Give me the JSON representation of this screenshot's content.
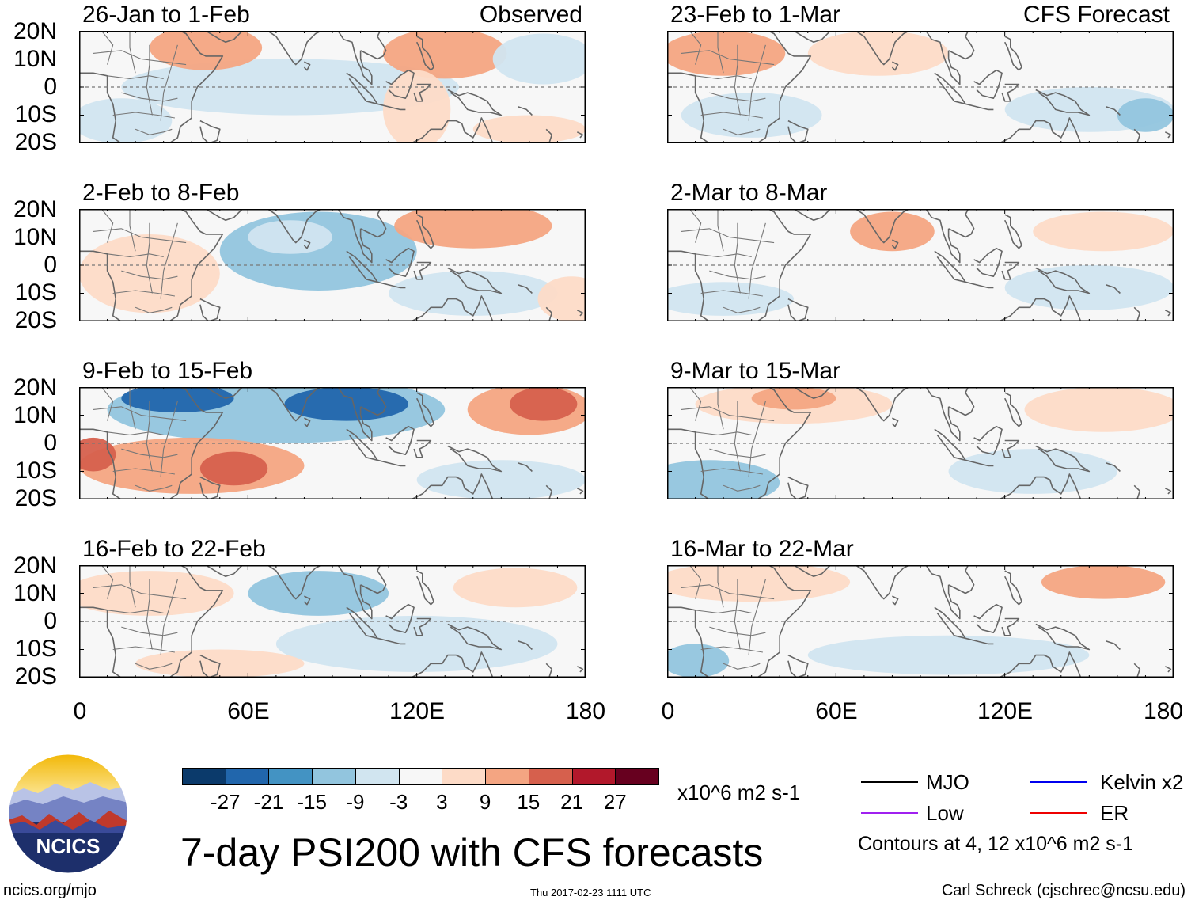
{
  "header": {
    "left_label": "Observed",
    "right_label": "CFS Forecast"
  },
  "observed_panels": [
    {
      "title": "26-Jan to 1-Feb"
    },
    {
      "title": "2-Feb to 8-Feb"
    },
    {
      "title": "9-Feb to 15-Feb"
    },
    {
      "title": "16-Feb to 22-Feb"
    }
  ],
  "forecast_panels": [
    {
      "title": "23-Feb to 1-Mar"
    },
    {
      "title": "2-Mar to 8-Mar"
    },
    {
      "title": "9-Mar to 15-Mar"
    },
    {
      "title": "16-Mar to 22-Mar"
    }
  ],
  "lat_labels": [
    "20N",
    "10N",
    "0",
    "10S",
    "20S"
  ],
  "lon_labels": [
    "0",
    "60E",
    "120E",
    "180"
  ],
  "colorbar": {
    "colors": [
      "#0b3a6b",
      "#2166ac",
      "#4393c3",
      "#92c5de",
      "#d1e5f0",
      "#f7f7f7",
      "#fddbc7",
      "#f4a582",
      "#d6604d",
      "#b2182b",
      "#67001f"
    ],
    "labels": [
      "-27",
      "-21",
      "-15",
      "-9",
      "-3",
      "3",
      "9",
      "15",
      "21",
      "27"
    ],
    "units": "x10^6 m2 s-1"
  },
  "legend": {
    "items": [
      {
        "label": "MJO",
        "color": "#000000"
      },
      {
        "label": "Kelvin x2",
        "color": "#0000ee"
      },
      {
        "label": "Low",
        "color": "#a020f0"
      },
      {
        "label": "ER",
        "color": "#ee0000"
      }
    ],
    "note": "Contours at 4, 12 x10^6 m2 s-1"
  },
  "logo": {
    "text": "NCICS"
  },
  "title": "7-day PSI200 with CFS forecasts",
  "footer": {
    "url": "ncics.org/mjo",
    "timestamp": "Thu 2017-02-23 1111 UTC",
    "credit": "Carl Schreck (cjschrec@ncsu.edu)"
  },
  "map_fields": {
    "observed": [
      [
        {
          "lon": 75,
          "lat": 0,
          "rx": 60,
          "ry": 10,
          "c": "#d1e5f0"
        },
        {
          "lon": 45,
          "lat": 14,
          "rx": 20,
          "ry": 8,
          "c": "#f4a582"
        },
        {
          "lon": 130,
          "lat": 12,
          "rx": 22,
          "ry": 9,
          "c": "#f4a582"
        },
        {
          "lon": 120,
          "lat": -8,
          "rx": 12,
          "ry": 14,
          "c": "#fddbc7"
        },
        {
          "lon": 165,
          "lat": 10,
          "rx": 18,
          "ry": 9,
          "c": "#d1e5f0"
        },
        {
          "lon": 160,
          "lat": -15,
          "rx": 20,
          "ry": 5,
          "c": "#fddbc7"
        },
        {
          "lon": 15,
          "lat": -12,
          "rx": 18,
          "ry": 8,
          "c": "#d1e5f0"
        }
      ],
      [
        {
          "lon": 85,
          "lat": 5,
          "rx": 35,
          "ry": 14,
          "c": "#92c5de"
        },
        {
          "lon": 75,
          "lat": 10,
          "rx": 15,
          "ry": 6,
          "c": "#d1e5f0"
        },
        {
          "lon": 25,
          "lat": -3,
          "rx": 25,
          "ry": 14,
          "c": "#fddbc7"
        },
        {
          "lon": 140,
          "lat": 14,
          "rx": 28,
          "ry": 8,
          "c": "#f4a582"
        },
        {
          "lon": 140,
          "lat": -10,
          "rx": 30,
          "ry": 8,
          "c": "#d1e5f0"
        },
        {
          "lon": 175,
          "lat": -12,
          "rx": 12,
          "ry": 8,
          "c": "#fddbc7"
        }
      ],
      [
        {
          "lon": 70,
          "lat": 12,
          "rx": 60,
          "ry": 12,
          "c": "#92c5de"
        },
        {
          "lon": 35,
          "lat": 16,
          "rx": 20,
          "ry": 5,
          "c": "#2166ac"
        },
        {
          "lon": 95,
          "lat": 14,
          "rx": 22,
          "ry": 6,
          "c": "#2166ac"
        },
        {
          "lon": 40,
          "lat": -8,
          "rx": 40,
          "ry": 10,
          "c": "#f4a582"
        },
        {
          "lon": 55,
          "lat": -9,
          "rx": 12,
          "ry": 6,
          "c": "#d6604d"
        },
        {
          "lon": 5,
          "lat": -4,
          "rx": 8,
          "ry": 6,
          "c": "#d6604d"
        },
        {
          "lon": 160,
          "lat": 12,
          "rx": 22,
          "ry": 9,
          "c": "#f4a582"
        },
        {
          "lon": 165,
          "lat": 14,
          "rx": 12,
          "ry": 6,
          "c": "#d6604d"
        },
        {
          "lon": 150,
          "lat": -13,
          "rx": 30,
          "ry": 7,
          "c": "#d1e5f0"
        }
      ],
      [
        {
          "lon": 85,
          "lat": 10,
          "rx": 25,
          "ry": 8,
          "c": "#92c5de"
        },
        {
          "lon": 25,
          "lat": 10,
          "rx": 30,
          "ry": 8,
          "c": "#fddbc7"
        },
        {
          "lon": 155,
          "lat": 12,
          "rx": 22,
          "ry": 7,
          "c": "#fddbc7"
        },
        {
          "lon": 120,
          "lat": -8,
          "rx": 50,
          "ry": 10,
          "c": "#d1e5f0"
        },
        {
          "lon": 50,
          "lat": -15,
          "rx": 30,
          "ry": 5,
          "c": "#fddbc7"
        }
      ]
    ],
    "forecast": [
      [
        {
          "lon": 20,
          "lat": 12,
          "rx": 22,
          "ry": 8,
          "c": "#f4a582"
        },
        {
          "lon": 75,
          "lat": 12,
          "rx": 25,
          "ry": 8,
          "c": "#fddbc7"
        },
        {
          "lon": 150,
          "lat": -8,
          "rx": 30,
          "ry": 8,
          "c": "#d1e5f0"
        },
        {
          "lon": 30,
          "lat": -10,
          "rx": 25,
          "ry": 8,
          "c": "#d1e5f0"
        },
        {
          "lon": 170,
          "lat": -10,
          "rx": 10,
          "ry": 6,
          "c": "#92c5de"
        }
      ],
      [
        {
          "lon": 80,
          "lat": 12,
          "rx": 15,
          "ry": 7,
          "c": "#f4a582"
        },
        {
          "lon": 155,
          "lat": 12,
          "rx": 25,
          "ry": 7,
          "c": "#fddbc7"
        },
        {
          "lon": 20,
          "lat": -12,
          "rx": 25,
          "ry": 6,
          "c": "#d1e5f0"
        },
        {
          "lon": 150,
          "lat": -8,
          "rx": 30,
          "ry": 8,
          "c": "#d1e5f0"
        }
      ],
      [
        {
          "lon": 45,
          "lat": 14,
          "rx": 35,
          "ry": 7,
          "c": "#fddbc7"
        },
        {
          "lon": 45,
          "lat": 16,
          "rx": 15,
          "ry": 4,
          "c": "#f4a582"
        },
        {
          "lon": 155,
          "lat": 12,
          "rx": 28,
          "ry": 8,
          "c": "#fddbc7"
        },
        {
          "lon": 15,
          "lat": -14,
          "rx": 25,
          "ry": 8,
          "c": "#92c5de"
        },
        {
          "lon": 130,
          "lat": -10,
          "rx": 30,
          "ry": 8,
          "c": "#d1e5f0"
        }
      ],
      [
        {
          "lon": 30,
          "lat": 14,
          "rx": 35,
          "ry": 7,
          "c": "#fddbc7"
        },
        {
          "lon": 155,
          "lat": 14,
          "rx": 22,
          "ry": 6,
          "c": "#f4a582"
        },
        {
          "lon": 100,
          "lat": -12,
          "rx": 50,
          "ry": 7,
          "c": "#d1e5f0"
        },
        {
          "lon": 10,
          "lat": -14,
          "rx": 12,
          "ry": 6,
          "c": "#92c5de"
        }
      ]
    ]
  }
}
